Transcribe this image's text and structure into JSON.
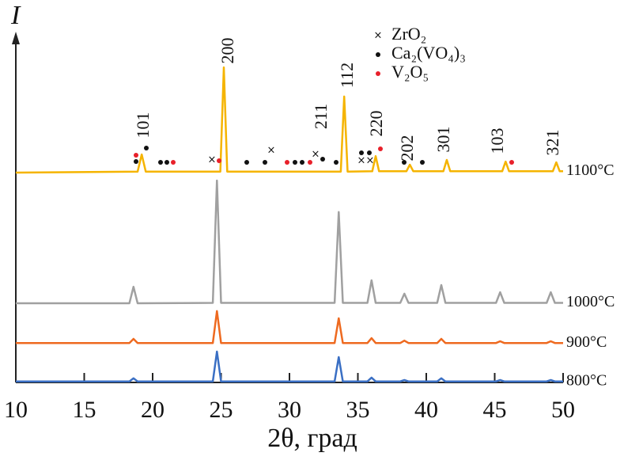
{
  "chart_data": {
    "type": "line",
    "ylabel": "I",
    "xlabel": "2θ, град",
    "xlim": [
      10,
      50
    ],
    "xticks": [
      10,
      15,
      20,
      25,
      30,
      35,
      40,
      45,
      50
    ],
    "ylim": [
      0,
      100
    ],
    "series": [
      {
        "name": "1100°C",
        "color": "#f5b400",
        "x": [
          10,
          18.9,
          19.2,
          19.5,
          24.95,
          25.2,
          25.45,
          33.75,
          34.0,
          34.25,
          36.05,
          36.3,
          36.55,
          38.55,
          38.8,
          39.05,
          41.25,
          41.5,
          41.75,
          45.55,
          45.8,
          46.05,
          49.25,
          49.5,
          49.75,
          50
        ],
        "values": [
          61.2,
          61.5,
          66.5,
          61.5,
          61.5,
          91.9,
          61.5,
          61.5,
          83.4,
          61.5,
          61.6,
          66,
          61.6,
          61.6,
          63.5,
          61.6,
          61.6,
          64.9,
          61.6,
          61.6,
          64.4,
          61.6,
          61.6,
          64.2,
          61.6,
          61.6
        ]
      },
      {
        "name": "1000°C",
        "color": "#a0a0a0",
        "x": [
          10,
          18.3,
          18.6,
          18.9,
          24.4,
          24.7,
          25.0,
          33.3,
          33.6,
          33.9,
          35.7,
          36.0,
          36.3,
          38.1,
          38.4,
          38.7,
          40.8,
          41.1,
          41.4,
          45.1,
          45.4,
          45.7,
          48.8,
          49.1,
          49.4,
          50
        ],
        "values": [
          23.1,
          23.1,
          27.9,
          23.1,
          23.2,
          58.9,
          23.2,
          23.2,
          49.7,
          23.2,
          23.2,
          29.8,
          23.2,
          23.2,
          25.9,
          23.2,
          23.2,
          28.4,
          23.2,
          23.2,
          26.3,
          23.2,
          23.2,
          26.3,
          23.2,
          23.2
        ]
      },
      {
        "name": "900°C",
        "color": "#ee6a20",
        "x": [
          10,
          18.3,
          18.6,
          18.9,
          24.4,
          24.7,
          25.0,
          33.3,
          33.6,
          33.9,
          35.7,
          36.0,
          36.3,
          38.1,
          38.4,
          38.7,
          40.8,
          41.1,
          41.4,
          45.1,
          45.4,
          45.7,
          48.8,
          49.1,
          49.4,
          50
        ],
        "values": [
          11.5,
          11.5,
          12.7,
          11.5,
          11.5,
          20.8,
          11.5,
          11.5,
          18.7,
          11.5,
          11.5,
          12.9,
          11.5,
          11.5,
          12.2,
          11.5,
          11.5,
          12.7,
          11.5,
          11.5,
          12.0,
          11.5,
          11.5,
          12.0,
          11.5,
          11.5
        ]
      },
      {
        "name": "800°C",
        "color": "#3a6fc4",
        "x": [
          10,
          18.3,
          18.6,
          18.9,
          24.4,
          24.7,
          25.0,
          33.3,
          33.6,
          33.9,
          35.7,
          36.0,
          36.3,
          38.1,
          38.4,
          38.7,
          40.8,
          41.1,
          41.4,
          45.1,
          45.4,
          45.7,
          48.8,
          49.1,
          49.4,
          50
        ],
        "values": [
          0.3,
          0.3,
          1.2,
          0.3,
          0.3,
          9.0,
          0.3,
          0.3,
          7.4,
          0.3,
          0.3,
          1.4,
          0.3,
          0.3,
          0.7,
          0.3,
          0.3,
          1.2,
          0.3,
          0.3,
          0.7,
          0.3,
          0.3,
          0.7,
          0.3,
          0.3
        ]
      }
    ],
    "peak_labels": [
      "101",
      "200",
      "211",
      "112",
      "220",
      "202",
      "301",
      "103",
      "321"
    ],
    "phases": [
      "ZrO₂",
      "Ca₂(VO₄)₃",
      "V₂O₅"
    ]
  }
}
